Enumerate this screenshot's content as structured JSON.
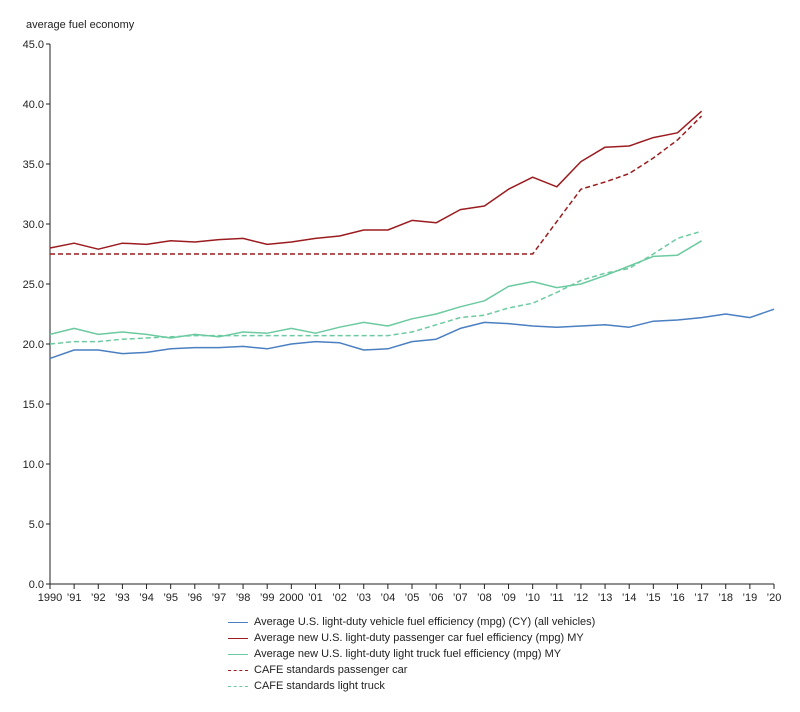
{
  "chart_data": {
    "type": "line",
    "title": "",
    "ylabel": "average fuel economy",
    "xlabel": "",
    "ylim": [
      0,
      45
    ],
    "yticks": [
      "0.0",
      "5.0",
      "10.0",
      "15.0",
      "20.0",
      "25.0",
      "30.0",
      "35.0",
      "40.0",
      "45.0"
    ],
    "categories": [
      "1990",
      "’91",
      "’92",
      "’93",
      "’94",
      "’95",
      "’96",
      "’97",
      "’98",
      "’99",
      "2000",
      "’01",
      "’02",
      "’03",
      "’04",
      "’05",
      "’06",
      "’07",
      "’08",
      "’09",
      "’10",
      "’11",
      "’12",
      "’13",
      "’14",
      "’15",
      "’16",
      "’17",
      "’18",
      "’19",
      "’20"
    ],
    "grid": false,
    "legend_position": "bottom",
    "series": [
      {
        "name": "Average U.S. light-duty vehicle fuel efficiency (mpg) (CY) (all vehicles)",
        "color": "#4a7fc1",
        "dash": "solid",
        "values": [
          18.8,
          19.5,
          19.5,
          19.2,
          19.3,
          19.6,
          19.7,
          19.7,
          19.8,
          19.6,
          20.0,
          20.2,
          20.1,
          19.5,
          19.6,
          20.2,
          20.4,
          21.3,
          21.8,
          21.7,
          21.5,
          21.4,
          21.5,
          21.6,
          21.4,
          21.9,
          22.0,
          22.2,
          22.5,
          22.2,
          22.9
        ]
      },
      {
        "name": "Average new U.S. light-duty passenger car fuel efficiency (mpg) MY",
        "color": "#9b1c1f",
        "dash": "solid",
        "values": [
          28.0,
          28.4,
          27.9,
          28.4,
          28.3,
          28.6,
          28.5,
          28.7,
          28.8,
          28.3,
          28.5,
          28.8,
          29.0,
          29.5,
          29.5,
          30.3,
          30.1,
          31.2,
          31.5,
          32.9,
          33.9,
          33.1,
          35.2,
          36.4,
          36.5,
          37.2,
          37.6,
          39.4,
          null,
          null,
          null
        ]
      },
      {
        "name": "Average new U.S. light-duty light truck fuel efficiency (mpg) MY",
        "color": "#6ccaa0",
        "dash": "solid",
        "values": [
          20.8,
          21.3,
          20.8,
          21.0,
          20.8,
          20.5,
          20.8,
          20.6,
          21.0,
          20.9,
          21.3,
          20.9,
          21.4,
          21.8,
          21.5,
          22.1,
          22.5,
          23.1,
          23.6,
          24.8,
          25.2,
          24.7,
          25.0,
          25.7,
          26.5,
          27.3,
          27.4,
          28.6,
          null,
          null,
          null
        ]
      },
      {
        "name": "CAFE standards passenger car",
        "color": "#9b1c1f",
        "dash": "dashed",
        "values": [
          27.5,
          27.5,
          27.5,
          27.5,
          27.5,
          27.5,
          27.5,
          27.5,
          27.5,
          27.5,
          27.5,
          27.5,
          27.5,
          27.5,
          27.5,
          27.5,
          27.5,
          27.5,
          27.5,
          27.5,
          27.5,
          30.2,
          32.9,
          33.5,
          34.2,
          35.5,
          37.0,
          39.0,
          null,
          null,
          null
        ]
      },
      {
        "name": "CAFE standards light truck",
        "color": "#6ccaa0",
        "dash": "dashed",
        "values": [
          20.0,
          20.2,
          20.2,
          20.4,
          20.5,
          20.6,
          20.7,
          20.7,
          20.7,
          20.7,
          20.7,
          20.7,
          20.7,
          20.7,
          20.7,
          21.0,
          21.6,
          22.2,
          22.4,
          23.0,
          23.4,
          24.3,
          25.3,
          25.9,
          26.3,
          27.5,
          28.8,
          29.4,
          null,
          null,
          null
        ]
      }
    ]
  }
}
